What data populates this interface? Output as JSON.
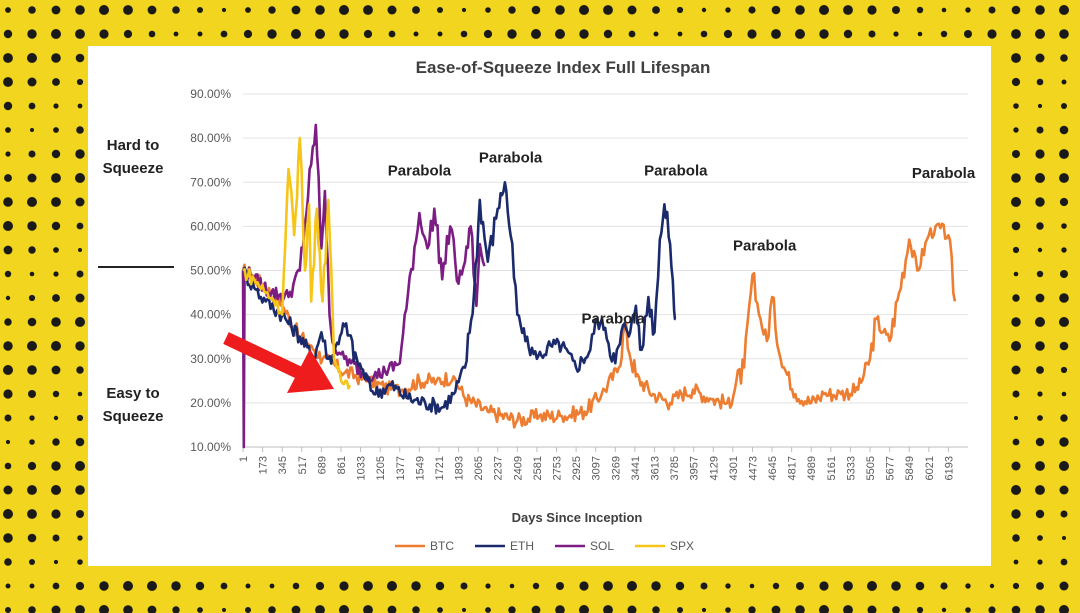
{
  "colors": {
    "background": "#f2d51f",
    "panel": "#ffffff",
    "arrow": "#ee1c1c"
  },
  "side_labels": {
    "hard": [
      "Hard to",
      "Squeeze"
    ],
    "easy": [
      "Easy to",
      "Squeeze"
    ]
  },
  "chart_data": {
    "type": "line",
    "title": "Ease-of-Squeeze Index Full Lifespan",
    "xlabel": "Days Since Inception",
    "ylabel": "",
    "ylim": [
      0.1,
      0.9
    ],
    "xlim": [
      1,
      6365
    ],
    "y_ticks": [
      0.1,
      0.2,
      0.3,
      0.4,
      0.5,
      0.6,
      0.7,
      0.8,
      0.9
    ],
    "y_tick_labels": [
      "10.00%",
      "20.00%",
      "30.00%",
      "40.00%",
      "50.00%",
      "60.00%",
      "70.00%",
      "80.00%",
      "90.00%"
    ],
    "x_ticks": [
      1,
      173,
      345,
      517,
      689,
      861,
      1033,
      1205,
      1377,
      1549,
      1721,
      1893,
      2065,
      2237,
      2409,
      2581,
      2753,
      2925,
      3097,
      3269,
      3441,
      3613,
      3785,
      3957,
      4129,
      4301,
      4473,
      4645,
      4817,
      4989,
      5161,
      5333,
      5505,
      5677,
      5849,
      6021,
      6193
    ],
    "grid": true,
    "legend_position": "bottom",
    "series": [
      {
        "name": "BTC",
        "color": "#ed7d31",
        "x": [
          1,
          80,
          200,
          345,
          500,
          600,
          700,
          900,
          1100,
          1300,
          1400,
          1550,
          1700,
          1850,
          1950,
          2150,
          2409,
          2600,
          2800,
          3000,
          3150,
          3300,
          3350,
          3450,
          3600,
          3750,
          3850,
          3950,
          4100,
          4250,
          4400,
          4473,
          4530,
          4600,
          4645,
          4720,
          4850,
          4989,
          5100,
          5250,
          5400,
          5505,
          5560,
          5620,
          5677,
          5760,
          5849,
          5920,
          6021,
          6080,
          6193,
          6250
        ],
        "y": [
          0.5,
          0.49,
          0.46,
          0.42,
          0.35,
          0.33,
          0.3,
          0.27,
          0.25,
          0.23,
          0.23,
          0.25,
          0.25,
          0.26,
          0.21,
          0.18,
          0.16,
          0.17,
          0.17,
          0.18,
          0.22,
          0.28,
          0.37,
          0.26,
          0.22,
          0.2,
          0.22,
          0.23,
          0.21,
          0.2,
          0.28,
          0.49,
          0.4,
          0.34,
          0.44,
          0.3,
          0.22,
          0.2,
          0.22,
          0.22,
          0.23,
          0.3,
          0.39,
          0.36,
          0.34,
          0.45,
          0.57,
          0.5,
          0.58,
          0.6,
          0.58,
          0.43
        ]
      },
      {
        "name": "ETH",
        "color": "#1b2a6b",
        "x": [
          1,
          100,
          200,
          345,
          500,
          620,
          689,
          750,
          800,
          880,
          1000,
          1150,
          1300,
          1450,
          1600,
          1750,
          1850,
          1950,
          2030,
          2080,
          2150,
          2237,
          2300,
          2350,
          2409,
          2480,
          2581,
          2700,
          2800,
          2925,
          3050,
          3097,
          3180,
          3269,
          3350,
          3400,
          3450,
          3500,
          3560,
          3613,
          3660,
          3700,
          3750,
          3785,
          3800
        ],
        "y": [
          0.5,
          0.46,
          0.43,
          0.4,
          0.35,
          0.3,
          0.36,
          0.3,
          0.31,
          0.38,
          0.3,
          0.22,
          0.24,
          0.21,
          0.2,
          0.19,
          0.22,
          0.28,
          0.45,
          0.66,
          0.52,
          0.64,
          0.7,
          0.58,
          0.4,
          0.34,
          0.3,
          0.33,
          0.33,
          0.28,
          0.32,
          0.39,
          0.37,
          0.29,
          0.38,
          0.36,
          0.42,
          0.32,
          0.44,
          0.36,
          0.57,
          0.65,
          0.56,
          0.41,
          0.39
        ]
      },
      {
        "name": "SOL",
        "color": "#7b1d82",
        "x": [
          1,
          8,
          15,
          100,
          250,
          400,
          500,
          600,
          640,
          689,
          720,
          760,
          800,
          861,
          950,
          1050,
          1150,
          1250,
          1377,
          1450,
          1549,
          1620,
          1680,
          1750,
          1820,
          1893,
          1950,
          2000,
          2050,
          2080,
          2120
        ],
        "y": [
          0.5,
          0.1,
          0.5,
          0.48,
          0.45,
          0.44,
          0.5,
          0.74,
          0.83,
          0.55,
          0.68,
          0.4,
          0.33,
          0.31,
          0.29,
          0.27,
          0.26,
          0.27,
          0.29,
          0.45,
          0.63,
          0.55,
          0.64,
          0.48,
          0.6,
          0.47,
          0.52,
          0.6,
          0.42,
          0.56,
          0.51
        ]
      },
      {
        "name": "SPX",
        "color": "#f5c518",
        "x": [
          1,
          100,
          200,
          300,
          345,
          400,
          450,
          500,
          545,
          580,
          600,
          650,
          700,
          750,
          800,
          850,
          900,
          940
        ],
        "y": [
          0.5,
          0.48,
          0.45,
          0.43,
          0.4,
          0.73,
          0.58,
          0.8,
          0.5,
          0.65,
          0.43,
          0.64,
          0.43,
          0.66,
          0.3,
          0.27,
          0.25,
          0.24
        ]
      }
    ],
    "annotations": [
      {
        "text": "Parabola",
        "x": 1550,
        "y": 0.715
      },
      {
        "text": "Parabola",
        "x": 2350,
        "y": 0.745
      },
      {
        "text": "Parabola",
        "x": 3250,
        "y": 0.38
      },
      {
        "text": "Parabola",
        "x": 3800,
        "y": 0.715
      },
      {
        "text": "Parabola",
        "x": 4580,
        "y": 0.545
      },
      {
        "text": "Parabola",
        "x": 6150,
        "y": 0.71
      }
    ]
  }
}
